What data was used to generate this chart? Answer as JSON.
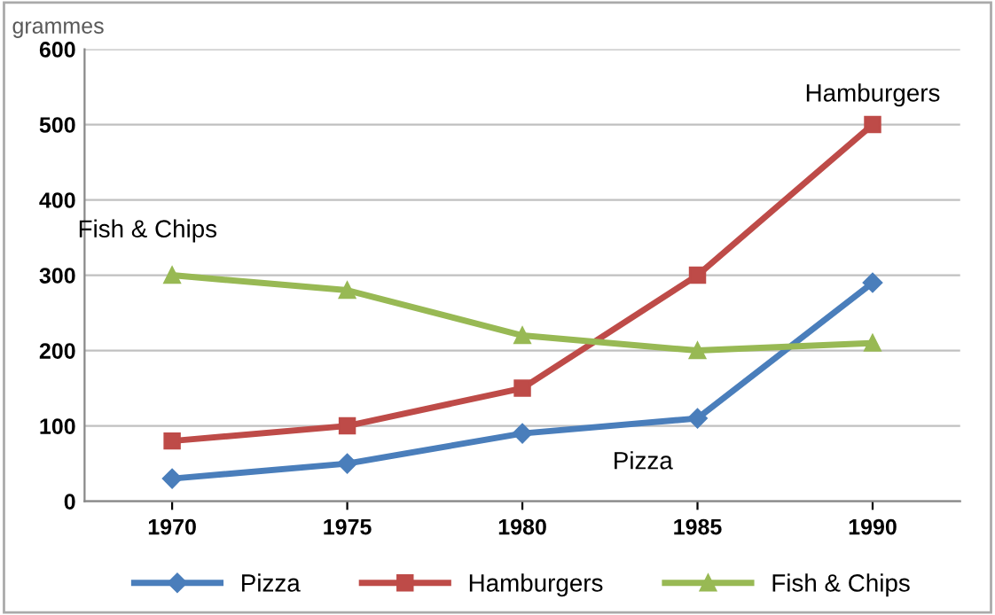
{
  "chart_data": {
    "type": "line",
    "ylabel": "grammes",
    "categories": [
      "1970",
      "1975",
      "1980",
      "1985",
      "1990"
    ],
    "series": [
      {
        "name": "Pizza",
        "color": "#4a7ebb",
        "marker": "diamond",
        "values": [
          30,
          50,
          90,
          110,
          290
        ]
      },
      {
        "name": "Hamburgers",
        "color": "#be4b48",
        "marker": "square",
        "values": [
          80,
          100,
          150,
          300,
          500
        ]
      },
      {
        "name": "Fish & Chips",
        "color": "#98b954",
        "marker": "triangle",
        "values": [
          300,
          280,
          220,
          200,
          210
        ]
      }
    ],
    "annotations": [
      {
        "text": "Pizza",
        "x": "1985",
        "y": 110
      },
      {
        "text": "Hamburgers",
        "x": "1990",
        "y": 500
      },
      {
        "text": "Fish & Chips",
        "x": "1970",
        "y": 300
      }
    ],
    "ylim": [
      0,
      600
    ],
    "yticks": [
      0,
      100,
      200,
      300,
      400,
      500,
      600
    ],
    "grid": "y",
    "legend": "bottom",
    "line_style": "solid"
  }
}
